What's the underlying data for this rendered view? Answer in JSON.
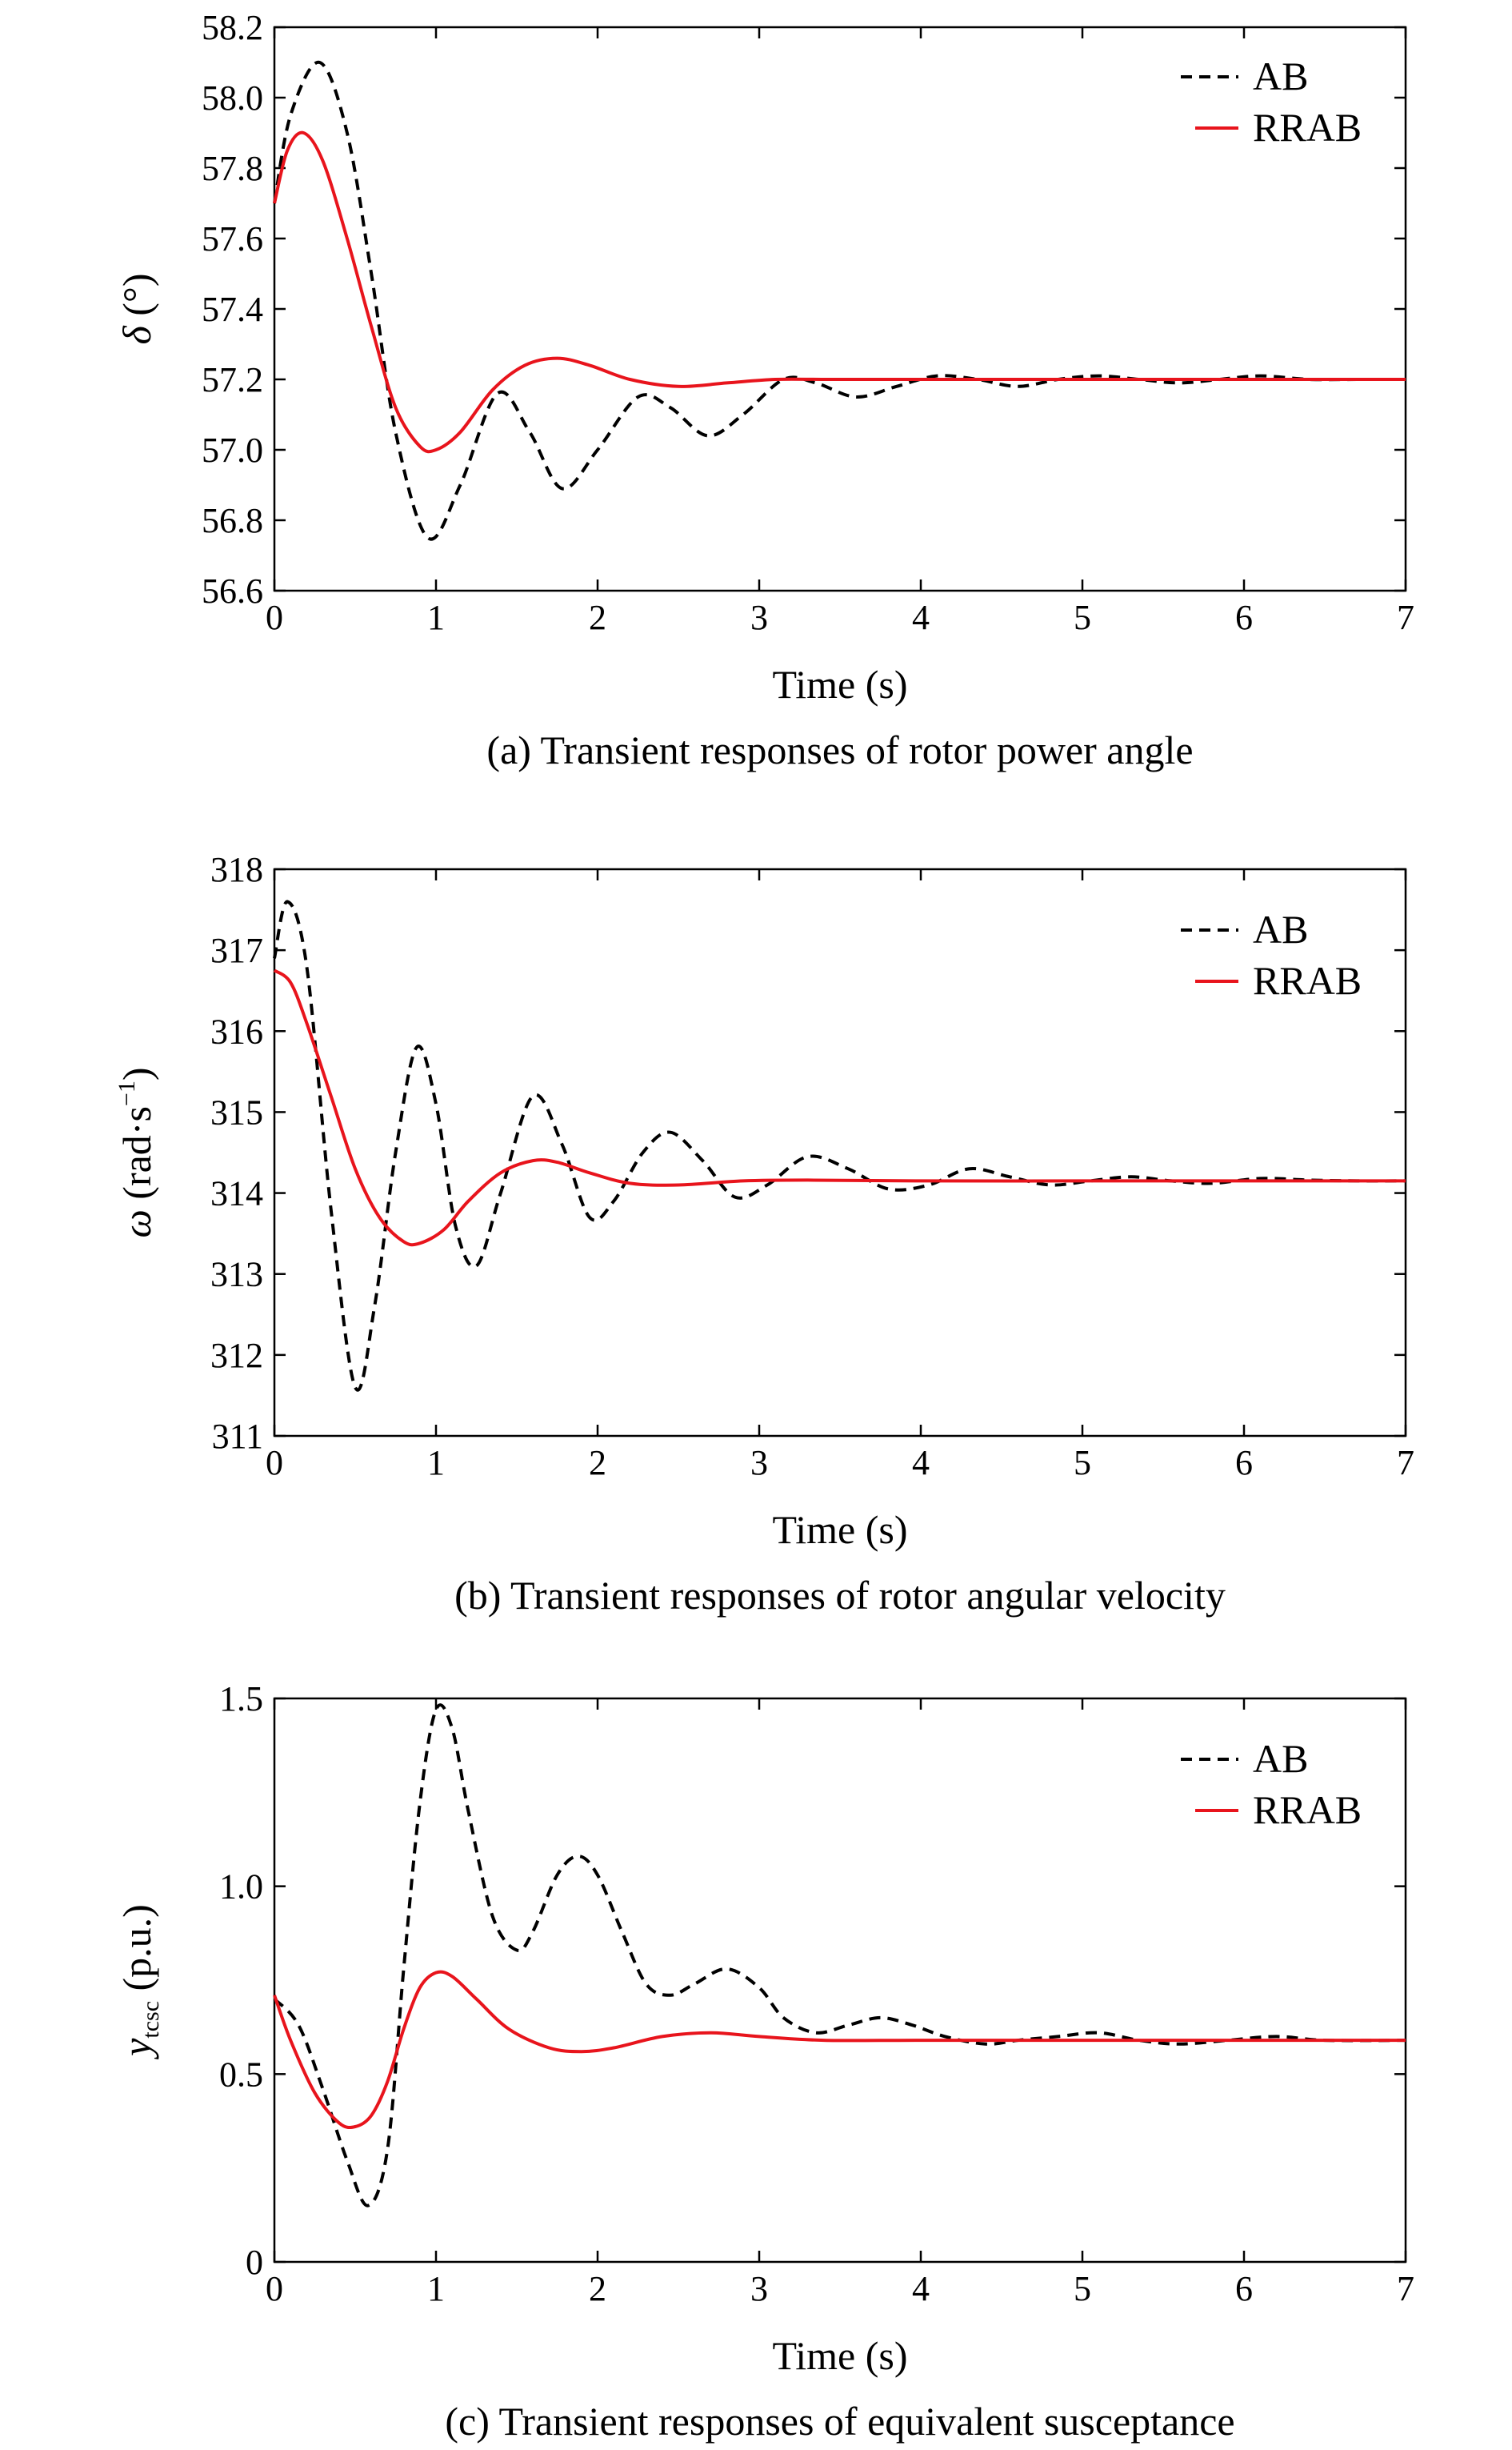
{
  "colors": {
    "ab": "#000000",
    "rrab": "#e8141c",
    "axis": "#000000"
  },
  "chart_data": [
    {
      "type": "line",
      "id": "a",
      "caption": "(a) Transient responses of rotor power angle",
      "xlabel": "Time (s)",
      "ylabel_sym": "δ",
      "ylabel_sup": "",
      "ylabel_sub": "",
      "ylabel_unit": " (°)",
      "xlim": [
        0,
        7
      ],
      "ylim": [
        56.6,
        58.2
      ],
      "xticks": [
        "0",
        "1",
        "2",
        "3",
        "4",
        "5",
        "6",
        "7"
      ],
      "yticks": [
        "56.6",
        "56.8",
        "57.0",
        "57.2",
        "57.4",
        "57.6",
        "57.8",
        "58.0",
        "58.2"
      ],
      "legend": [
        "AB",
        "RRAB"
      ],
      "series": [
        {
          "name": "AB",
          "style": "dashed",
          "x": [
            0,
            0.1,
            0.28,
            0.45,
            0.6,
            0.75,
            0.95,
            1.15,
            1.38,
            1.58,
            1.78,
            2.0,
            2.25,
            2.45,
            2.68,
            2.9,
            3.15,
            3.35,
            3.6,
            3.85,
            4.1,
            4.35,
            4.6,
            4.85,
            5.1,
            5.35,
            5.6,
            5.85,
            6.1,
            6.4,
            6.7,
            7.0
          ],
          "y": [
            57.7,
            57.95,
            58.1,
            57.9,
            57.5,
            57.05,
            56.75,
            56.9,
            57.16,
            57.05,
            56.89,
            57.0,
            57.15,
            57.12,
            57.04,
            57.1,
            57.2,
            57.19,
            57.15,
            57.18,
            57.21,
            57.2,
            57.18,
            57.2,
            57.21,
            57.2,
            57.19,
            57.2,
            57.21,
            57.2,
            57.2,
            57.2
          ]
        },
        {
          "name": "RRAB",
          "style": "solid",
          "x": [
            0,
            0.08,
            0.18,
            0.3,
            0.45,
            0.6,
            0.75,
            0.9,
            1.0,
            1.15,
            1.35,
            1.55,
            1.75,
            1.95,
            2.2,
            2.5,
            2.8,
            3.1,
            3.4,
            3.8,
            4.2,
            5.0,
            6.0,
            7.0
          ],
          "y": [
            57.7,
            57.85,
            57.9,
            57.82,
            57.6,
            57.35,
            57.12,
            57.01,
            57.0,
            57.05,
            57.17,
            57.24,
            57.26,
            57.24,
            57.2,
            57.18,
            57.19,
            57.2,
            57.2,
            57.2,
            57.2,
            57.2,
            57.2,
            57.2
          ]
        }
      ]
    },
    {
      "type": "line",
      "id": "b",
      "caption": "(b) Transient responses of rotor angular velocity",
      "xlabel": "Time (s)",
      "ylabel_sym": "ω",
      "ylabel_sup": "−1",
      "ylabel_sub": "",
      "ylabel_unit": " (rad·s",
      "xlim": [
        0,
        7
      ],
      "ylim": [
        311,
        318
      ],
      "xticks": [
        "0",
        "1",
        "2",
        "3",
        "4",
        "5",
        "6",
        "7"
      ],
      "yticks": [
        "311",
        "312",
        "313",
        "314",
        "315",
        "316",
        "317",
        "318"
      ],
      "legend": [
        "AB",
        "RRAB"
      ],
      "series": [
        {
          "name": "AB",
          "style": "dashed",
          "x": [
            0,
            0.08,
            0.2,
            0.35,
            0.5,
            0.62,
            0.75,
            0.88,
            1.0,
            1.12,
            1.25,
            1.4,
            1.6,
            1.78,
            1.95,
            2.1,
            2.28,
            2.45,
            2.65,
            2.85,
            3.05,
            3.3,
            3.55,
            3.8,
            4.05,
            4.3,
            4.55,
            4.8,
            5.05,
            5.3,
            5.55,
            5.8,
            6.1,
            6.4,
            6.7,
            7.0
          ],
          "y": [
            316.9,
            317.6,
            316.8,
            313.8,
            311.6,
            312.6,
            314.5,
            315.8,
            315.1,
            313.6,
            313.1,
            314.0,
            315.2,
            314.6,
            313.7,
            313.9,
            314.5,
            314.75,
            314.4,
            313.95,
            314.1,
            314.45,
            314.3,
            314.05,
            314.1,
            314.3,
            314.2,
            314.1,
            314.15,
            314.2,
            314.15,
            314.12,
            314.18,
            314.16,
            314.15,
            314.15
          ]
        },
        {
          "name": "RRAB",
          "style": "solid",
          "x": [
            0,
            0.1,
            0.2,
            0.35,
            0.5,
            0.65,
            0.8,
            0.9,
            1.05,
            1.2,
            1.4,
            1.6,
            1.75,
            1.95,
            2.2,
            2.5,
            2.9,
            3.3,
            4.0,
            5.0,
            6.0,
            7.0
          ],
          "y": [
            316.75,
            316.6,
            316.1,
            315.2,
            314.3,
            313.7,
            313.4,
            313.38,
            313.55,
            313.9,
            314.25,
            314.4,
            314.38,
            314.25,
            314.12,
            314.1,
            314.15,
            314.16,
            314.15,
            314.15,
            314.15,
            314.15
          ]
        }
      ]
    },
    {
      "type": "line",
      "id": "c",
      "caption": "(c) Transient responses of equivalent susceptance",
      "xlabel": "Time (s)",
      "ylabel_sym": "y",
      "ylabel_sup": "",
      "ylabel_sub": "tcsc",
      "ylabel_unit": " (p.u.)",
      "xlim": [
        0,
        7
      ],
      "ylim": [
        0,
        1.5
      ],
      "xticks": [
        "0",
        "1",
        "2",
        "3",
        "4",
        "5",
        "6",
        "7"
      ],
      "yticks": [
        "0",
        "0.5",
        "1.0",
        "1.5"
      ],
      "legend": [
        "AB",
        "RRAB"
      ],
      "series": [
        {
          "name": "AB",
          "style": "dashed",
          "x": [
            0,
            0.15,
            0.3,
            0.45,
            0.58,
            0.7,
            0.8,
            0.9,
            1.0,
            1.1,
            1.2,
            1.35,
            1.5,
            1.6,
            1.75,
            1.88,
            2.0,
            2.15,
            2.3,
            2.45,
            2.6,
            2.8,
            3.0,
            3.15,
            3.35,
            3.55,
            3.75,
            3.95,
            4.15,
            4.4,
            4.6,
            4.85,
            5.1,
            5.35,
            5.6,
            5.9,
            6.2,
            6.5,
            7.0
          ],
          "y": [
            0.7,
            0.63,
            0.46,
            0.27,
            0.15,
            0.3,
            0.78,
            1.22,
            1.47,
            1.42,
            1.2,
            0.92,
            0.83,
            0.88,
            1.03,
            1.08,
            1.03,
            0.88,
            0.74,
            0.71,
            0.74,
            0.78,
            0.73,
            0.65,
            0.61,
            0.63,
            0.65,
            0.63,
            0.6,
            0.58,
            0.59,
            0.6,
            0.61,
            0.59,
            0.58,
            0.59,
            0.6,
            0.59,
            0.59
          ]
        },
        {
          "name": "RRAB",
          "style": "solid",
          "x": [
            0,
            0.1,
            0.25,
            0.4,
            0.5,
            0.6,
            0.7,
            0.8,
            0.9,
            1.0,
            1.1,
            1.25,
            1.45,
            1.7,
            1.9,
            2.1,
            2.4,
            2.7,
            3.0,
            3.4,
            4.0,
            5.0,
            6.0,
            7.0
          ],
          "y": [
            0.71,
            0.59,
            0.45,
            0.37,
            0.36,
            0.39,
            0.48,
            0.62,
            0.73,
            0.77,
            0.76,
            0.7,
            0.62,
            0.57,
            0.56,
            0.57,
            0.6,
            0.61,
            0.6,
            0.59,
            0.59,
            0.59,
            0.59,
            0.59
          ]
        }
      ]
    }
  ]
}
